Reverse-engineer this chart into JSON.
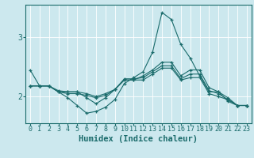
{
  "xlabel": "Humidex (Indice chaleur)",
  "ylabel": "",
  "xlim": [
    -0.5,
    23.5
  ],
  "ylim": [
    1.55,
    3.55
  ],
  "background_color": "#cce8ee",
  "line_color": "#1a6b6b",
  "grid_color": "#ffffff",
  "x": [
    0,
    1,
    2,
    3,
    4,
    5,
    6,
    7,
    8,
    9,
    10,
    11,
    12,
    13,
    14,
    15,
    16,
    17,
    18,
    19,
    20,
    21,
    22,
    23
  ],
  "lines": [
    [
      2.45,
      2.18,
      2.18,
      2.08,
      1.98,
      1.85,
      1.72,
      1.75,
      1.82,
      1.95,
      2.22,
      2.32,
      2.42,
      2.75,
      3.42,
      3.3,
      2.88,
      2.65,
      2.35,
      2.08,
      2.08,
      1.92,
      1.85,
      1.85
    ],
    [
      2.18,
      2.18,
      2.18,
      2.08,
      2.08,
      2.08,
      1.98,
      1.88,
      1.98,
      2.12,
      2.28,
      2.28,
      2.35,
      2.45,
      2.58,
      2.58,
      2.35,
      2.45,
      2.45,
      2.15,
      2.08,
      1.98,
      1.85,
      1.85
    ],
    [
      2.18,
      2.18,
      2.18,
      2.08,
      2.05,
      2.05,
      2.02,
      1.98,
      2.02,
      2.12,
      2.3,
      2.3,
      2.32,
      2.42,
      2.52,
      2.52,
      2.3,
      2.38,
      2.38,
      2.1,
      2.05,
      1.95,
      1.85,
      1.85
    ],
    [
      2.18,
      2.18,
      2.18,
      2.1,
      2.08,
      2.08,
      2.05,
      2.0,
      2.05,
      2.12,
      2.28,
      2.28,
      2.28,
      2.38,
      2.48,
      2.48,
      2.28,
      2.32,
      2.32,
      2.05,
      2.0,
      1.95,
      1.85,
      1.85
    ]
  ],
  "yticks": [
    2,
    3
  ],
  "xticks": [
    0,
    1,
    2,
    3,
    4,
    5,
    6,
    7,
    8,
    9,
    10,
    11,
    12,
    13,
    14,
    15,
    16,
    17,
    18,
    19,
    20,
    21,
    22,
    23
  ],
  "marker": "+",
  "markersize": 3.5,
  "linewidth": 0.8,
  "tick_fontsize": 6.0,
  "xlabel_fontsize": 7.5
}
